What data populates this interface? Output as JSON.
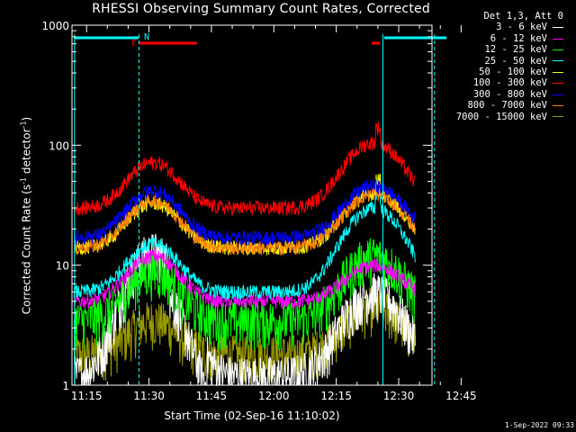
{
  "chart_data": {
    "type": "line",
    "title": "RHESSI Observing Summary Count Rates, Corrected",
    "xlabel": "Start Time (02-Sep-16 11:10:02)",
    "ylabel": "Corrected Count Rate (s",
    "ylabel_sup1": "-1",
    "ylabel_mid": " detector",
    "ylabel_sup2": "-1",
    "ylabel_end": ")",
    "yscale": "log",
    "ylim": [
      1,
      1000
    ],
    "xlim_minutes": [
      11.5,
      98.0
    ],
    "x_ticks": [
      {
        "min": 15,
        "label": "11:15"
      },
      {
        "min": 30,
        "label": "11:30"
      },
      {
        "min": 45,
        "label": "11:45"
      },
      {
        "min": 60,
        "label": "12:00"
      },
      {
        "min": 75,
        "label": "12:15"
      },
      {
        "min": 90,
        "label": "12:30"
      },
      {
        "min": 105,
        "label": "12:45"
      }
    ],
    "y_ticks": [
      {
        "value": 1,
        "label": "1"
      },
      {
        "value": 10,
        "label": "10"
      },
      {
        "value": 100,
        "label": "100"
      },
      {
        "value": 1000,
        "label": "1000"
      }
    ],
    "legend_header": "Det 1,3, Att 0",
    "series": [
      {
        "name": "3 - 6 keV",
        "color": "#ffffff",
        "base": 1.2,
        "amp1": 13,
        "amp2": 6
      },
      {
        "name": "6 - 12 keV",
        "color": "#ff00ff",
        "base": 5.0,
        "amp1": 12,
        "amp2": 10
      },
      {
        "name": "12 - 25 keV",
        "color": "#00ff00",
        "base": 3.5,
        "amp1": 9,
        "amp2": 12
      },
      {
        "name": "25 - 50 keV",
        "color": "#00ffff",
        "base": 6.0,
        "amp1": 15,
        "amp2": 30
      },
      {
        "name": "50 - 100 keV",
        "color": "#ffff00",
        "base": 14,
        "amp1": 33,
        "amp2": 40
      },
      {
        "name": "100 - 300 keV",
        "color": "#ff0000",
        "base": 30,
        "amp1": 72,
        "amp2": 105
      },
      {
        "name": "300 - 800 keV",
        "color": "#0000ff",
        "base": 17,
        "amp1": 42,
        "amp2": 46
      },
      {
        "name": "800 - 7000 keV",
        "color": "#ff8000",
        "base": 14,
        "amp1": 35,
        "amp2": 40
      },
      {
        "name": "7000 - 15000 keV",
        "color": "#999900",
        "base": 1.8,
        "amp1": 3.5,
        "amp2": 4.5
      }
    ],
    "annotations": [
      {
        "label": "F",
        "color": "#ff0000"
      },
      {
        "label": "N",
        "color": "#00ffff"
      }
    ],
    "timestamp": "1-Sep-2022 09:33"
  }
}
